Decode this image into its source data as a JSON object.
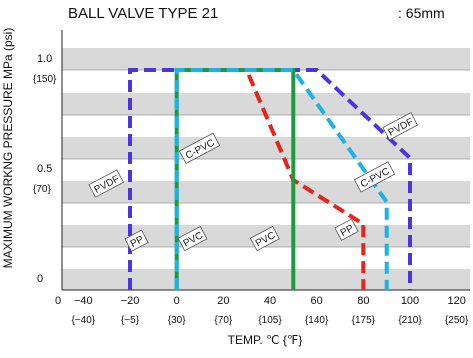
{
  "chart_data": {
    "type": "line",
    "title": "BALL VALVE TYPE 21",
    "subtitle": ": 65mm",
    "xlabel": "TEMP. ℃ {℉}",
    "ylabel": "MAXIMUM WORKNG PRESSURE  MPa (psi)",
    "xlim": [
      -60,
      130
    ],
    "ylim": [
      0,
      1.2
    ],
    "x_ticks": [
      {
        "value": -40,
        "label": "−40",
        "sub": "{−40}"
      },
      {
        "value": -20,
        "label": "−20",
        "sub": "{−5}"
      },
      {
        "value": 0,
        "label": "0",
        "sub": "{30}"
      },
      {
        "value": 20,
        "label": "20",
        "sub": "{70}"
      },
      {
        "value": 40,
        "label": "40",
        "sub": "{105}"
      },
      {
        "value": 60,
        "label": "60",
        "sub": "{140}"
      },
      {
        "value": 80,
        "label": "80",
        "sub": "{175}"
      },
      {
        "value": 100,
        "label": "100",
        "sub": "{210}"
      },
      {
        "value": 120,
        "label": "120",
        "sub": "{250}"
      }
    ],
    "x_extra_label": {
      "value": -60,
      "label": "0"
    },
    "y_ticks": [
      {
        "value": 1.0,
        "label": "1.0",
        "sub": "{150}"
      },
      {
        "value": 0.5,
        "label": "0.5",
        "sub": "{70}"
      },
      {
        "value": 0,
        "label": "0",
        "sub": ""
      }
    ],
    "series": [
      {
        "name": "PP",
        "color": "#e8231b",
        "x": [
          -20,
          -20,
          30,
          50,
          80,
          80
        ],
        "y": [
          0,
          1.0,
          1.0,
          0.5,
          0.3,
          0
        ],
        "label_at": [
          -17,
          0.22
        ]
      },
      {
        "name": "PVDF",
        "color": "#4a35e0",
        "x": [
          -20,
          -20,
          60,
          100,
          100
        ],
        "y": [
          0,
          1.0,
          1.0,
          0.6,
          0
        ],
        "label_at": [
          -30,
          0.48
        ]
      },
      {
        "name": "PVC",
        "color": "#1f9a3a",
        "x": [
          0,
          0,
          50,
          50
        ],
        "y": [
          0,
          1.0,
          1.0,
          0
        ],
        "label_at": [
          7,
          0.23
        ]
      },
      {
        "name": "C-PVC",
        "color": "#1ab2e8",
        "x": [
          0,
          0,
          50,
          90,
          90
        ],
        "y": [
          0,
          1.0,
          1.0,
          0.4,
          0
        ],
        "label_at": [
          10,
          0.64
        ]
      }
    ],
    "extra_labels": [
      {
        "text": "PVC",
        "at": [
          38,
          0.23
        ]
      },
      {
        "text": "PP",
        "at": [
          73,
          0.27
        ]
      },
      {
        "text": "C-PVC",
        "at": [
          85,
          0.51
        ]
      },
      {
        "text": "PVDF",
        "at": [
          96,
          0.74
        ]
      }
    ],
    "band_color": "#d9d9d9",
    "grid": true,
    "legend": "inline labels"
  }
}
